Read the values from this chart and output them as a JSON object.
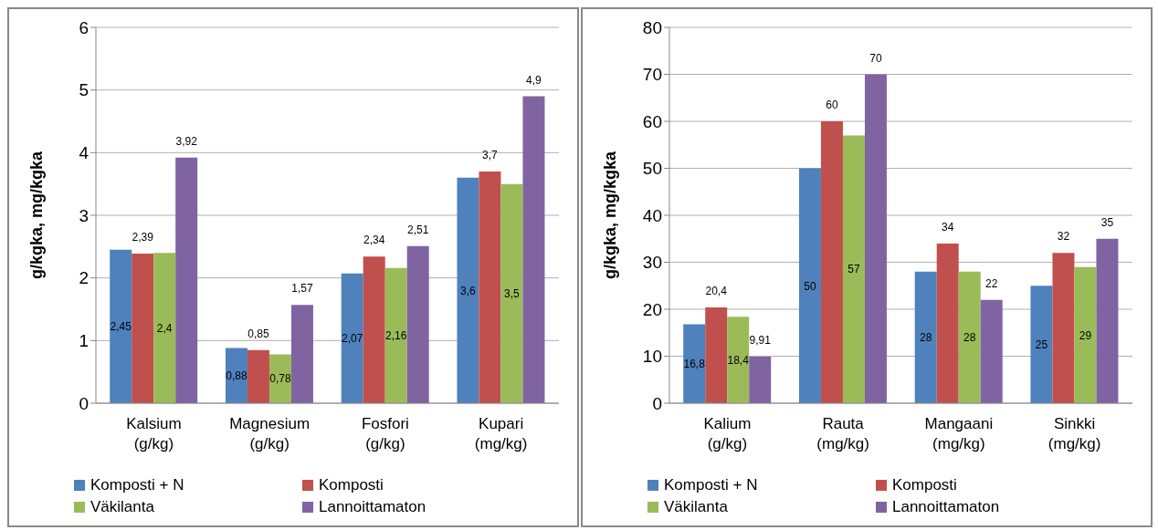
{
  "chart_data": [
    {
      "type": "bar",
      "ylabel": "g/kgka, mg/kgka",
      "categories": [
        "Kalsium (g/kg)",
        "Magnesium (g/kg)",
        "Fosfori (g/kg)",
        "Kupari (mg/kg)"
      ],
      "series": [
        {
          "name": "Komposti + N",
          "color": "#4f81bd",
          "values": [
            2.45,
            0.88,
            2.07,
            3.6
          ],
          "value_labels": [
            "2,45",
            "0,88",
            "2,07",
            "3,6"
          ]
        },
        {
          "name": "Komposti",
          "color": "#c0504d",
          "values": [
            2.39,
            0.85,
            2.34,
            3.7
          ],
          "value_labels": [
            "2,39",
            "0,85",
            "2,34",
            "3,7"
          ]
        },
        {
          "name": "Väkilanta",
          "color": "#9bbb59",
          "values": [
            2.4,
            0.78,
            2.16,
            3.5
          ],
          "value_labels": [
            "2,4",
            "0,78",
            "2,16",
            "3,5"
          ]
        },
        {
          "name": "Lannoittamaton",
          "color": "#8064a2",
          "values": [
            3.92,
            1.57,
            2.51,
            4.9
          ],
          "value_labels": [
            "3,92",
            "1,57",
            "2,51",
            "4,9"
          ]
        }
      ],
      "ylim": [
        0,
        6
      ],
      "yticks": [
        0,
        1,
        2,
        3,
        4,
        5,
        6
      ],
      "grid": "y",
      "legend": "bottom"
    },
    {
      "type": "bar",
      "ylabel": "g/kgka, mg/kgka",
      "categories": [
        "Kalium (g/kg)",
        "Rauta (mg/kg)",
        "Mangaani (mg/kg)",
        "Sinkki (mg/kg)"
      ],
      "series": [
        {
          "name": "Komposti + N",
          "color": "#4f81bd",
          "values": [
            16.8,
            50,
            28,
            25
          ],
          "value_labels": [
            "16,8",
            "50",
            "28",
            "25"
          ]
        },
        {
          "name": "Komposti",
          "color": "#c0504d",
          "values": [
            20.4,
            60,
            34,
            32
          ],
          "value_labels": [
            "20,4",
            "60",
            "34",
            "32"
          ]
        },
        {
          "name": "Väkilanta",
          "color": "#9bbb59",
          "values": [
            18.4,
            57,
            28,
            29
          ],
          "value_labels": [
            "18,4",
            "57",
            "28",
            "29"
          ]
        },
        {
          "name": "Lannoittamaton",
          "color": "#8064a2",
          "values": [
            9.91,
            70,
            22,
            35
          ],
          "value_labels": [
            "9,91",
            "70",
            "22",
            "35"
          ]
        }
      ],
      "ylim": [
        0,
        80
      ],
      "yticks": [
        0,
        10,
        20,
        30,
        40,
        50,
        60,
        70,
        80
      ],
      "grid": "y",
      "legend": "bottom"
    }
  ]
}
